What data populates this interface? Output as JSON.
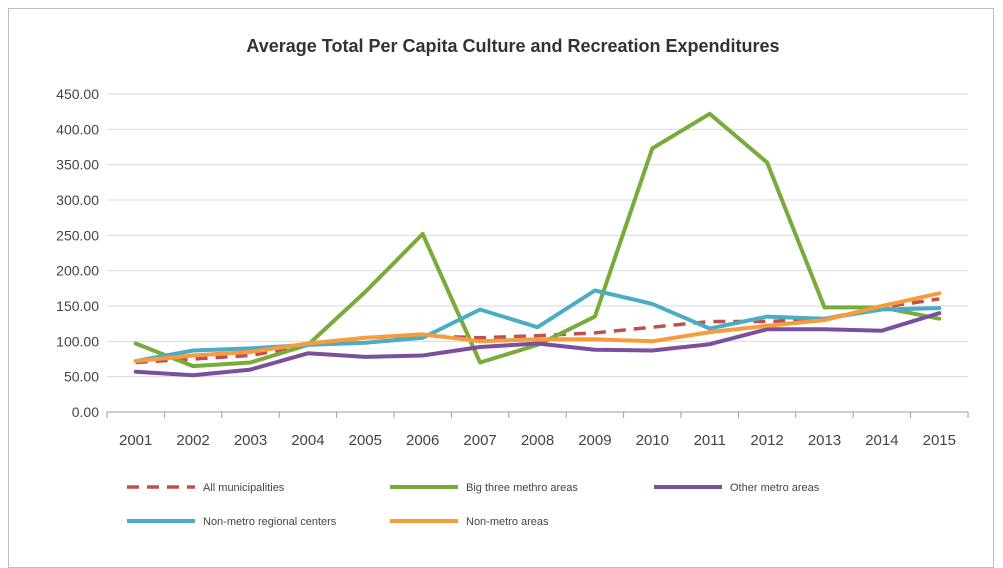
{
  "chart_data": {
    "type": "line",
    "title": "Average Total Per Capita Culture and Recreation Expenditures",
    "xlabel": "",
    "ylabel": "",
    "ylim": [
      0,
      450
    ],
    "yticks": [
      "0.00",
      "50.00",
      "100.00",
      "150.00",
      "200.00",
      "250.00",
      "300.00",
      "350.00",
      "400.00",
      "450.00"
    ],
    "grid": true,
    "legend_position": "bottom",
    "categories": [
      "2001",
      "2002",
      "2003",
      "2004",
      "2005",
      "2006",
      "2007",
      "2008",
      "2009",
      "2010",
      "2011",
      "2012",
      "2013",
      "2014",
      "2015"
    ],
    "series": [
      {
        "name": "All municipalities",
        "color": "#C0504D",
        "dashed": true,
        "values": [
          70,
          75,
          80,
          95,
          105,
          108,
          105,
          108,
          112,
          120,
          128,
          128,
          132,
          148,
          160
        ]
      },
      {
        "name": "Big three methro areas",
        "color": "#77AC3B",
        "dashed": false,
        "values": [
          97,
          65,
          70,
          95,
          170,
          252,
          70,
          95,
          135,
          373,
          422,
          353,
          148,
          148,
          132
        ]
      },
      {
        "name": "Other metro areas",
        "color": "#7B4F9D",
        "dashed": false,
        "values": [
          57,
          52,
          60,
          83,
          78,
          80,
          92,
          97,
          88,
          87,
          96,
          117,
          117,
          115,
          140
        ]
      },
      {
        "name": "Non-metro regional centers",
        "color": "#4AACC5",
        "dashed": false,
        "values": [
          72,
          87,
          90,
          95,
          98,
          105,
          145,
          120,
          172,
          153,
          118,
          135,
          132,
          145,
          147
        ]
      },
      {
        "name": "Non-metro areas",
        "color": "#F59D3D",
        "dashed": false,
        "values": [
          72,
          80,
          85,
          97,
          105,
          110,
          100,
          103,
          103,
          100,
          113,
          122,
          130,
          150,
          168
        ]
      }
    ]
  }
}
